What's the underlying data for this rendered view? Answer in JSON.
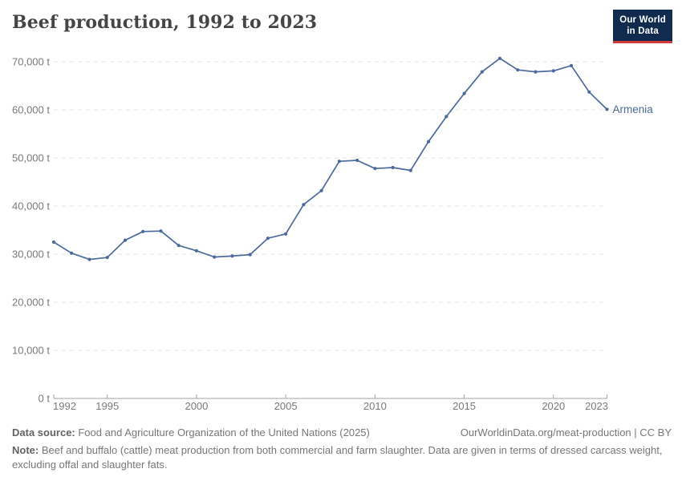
{
  "header": {
    "title": "Beef production, 1992 to 2023",
    "logo": {
      "line1": "Our World",
      "line2": "in Data",
      "background_color": "#112b4e",
      "bar_color": "#d73c3c"
    }
  },
  "chart_data": {
    "type": "line",
    "title": "Beef production, 1992 to 2023",
    "x": [
      1992,
      1993,
      1994,
      1995,
      1996,
      1997,
      1998,
      1999,
      2000,
      2001,
      2002,
      2003,
      2004,
      2005,
      2006,
      2007,
      2008,
      2009,
      2010,
      2011,
      2012,
      2013,
      2014,
      2015,
      2016,
      2017,
      2018,
      2019,
      2020,
      2021,
      2022,
      2023
    ],
    "series": [
      {
        "name": "Armenia",
        "color": "#4c6a9c",
        "values": [
          32500,
          30200,
          28900,
          29300,
          32900,
          34700,
          34800,
          31800,
          30700,
          29400,
          29600,
          29900,
          33300,
          34200,
          40300,
          43200,
          49300,
          49500,
          47800,
          48000,
          47400,
          53400,
          58600,
          63400,
          67900,
          70700,
          68300,
          67900,
          68100,
          69200,
          63700,
          60100
        ]
      }
    ],
    "xlim": [
      1992,
      2023
    ],
    "ylim": [
      0,
      70000
    ],
    "unit": "t",
    "yticks": [
      {
        "value": 0,
        "label": "0 t"
      },
      {
        "value": 10000,
        "label": "10,000 t"
      },
      {
        "value": 20000,
        "label": "20,000 t"
      },
      {
        "value": 30000,
        "label": "30,000 t"
      },
      {
        "value": 40000,
        "label": "40,000 t"
      },
      {
        "value": 50000,
        "label": "50,000 t"
      },
      {
        "value": 60000,
        "label": "60,000 t"
      },
      {
        "value": 70000,
        "label": "70,000 t"
      }
    ],
    "xticks": [
      {
        "value": 1992,
        "label": "1992",
        "align": "start"
      },
      {
        "value": 1995,
        "label": "1995",
        "align": "middle"
      },
      {
        "value": 2000,
        "label": "2000",
        "align": "middle"
      },
      {
        "value": 2005,
        "label": "2005",
        "align": "middle"
      },
      {
        "value": 2010,
        "label": "2010",
        "align": "middle"
      },
      {
        "value": 2015,
        "label": "2015",
        "align": "middle"
      },
      {
        "value": 2020,
        "label": "2020",
        "align": "middle"
      },
      {
        "value": 2023,
        "label": "2023",
        "align": "end"
      }
    ],
    "grid": "horizontal-dashed",
    "legend": "end-of-line-label",
    "colors": {
      "gridline": "#e3e3e3",
      "axis_line": "#a3a3a3",
      "tick_text": "#7a7a7a"
    }
  },
  "footer": {
    "datasource_label": "Data source:",
    "datasource_text": " Food and Agriculture Organization of the United Nations (2025)",
    "link_text": "OurWorldinData.org/meat-production | CC BY",
    "note_label": "Note:",
    "note_text": " Beef and buffalo (cattle) meat production from both commercial and farm slaughter. Data are given in terms of dressed carcass weight, excluding offal and slaughter fats."
  }
}
